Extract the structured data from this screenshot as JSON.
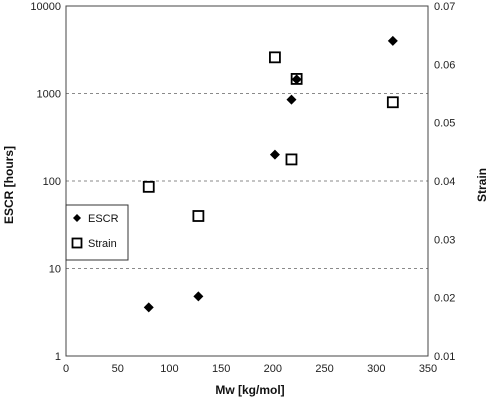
{
  "chart_data": {
    "type": "scatter",
    "xlabel": "Mw [kg/mol]",
    "ylabel_left": "ESCR [hours]",
    "ylabel_right": "Strain",
    "xlim": [
      0,
      350
    ],
    "ylim_left": [
      1,
      10000
    ],
    "ylim_right": [
      0.01,
      0.07
    ],
    "y_left_scale": "log",
    "x_ticks": [
      "0",
      "50",
      "100",
      "150",
      "200",
      "250",
      "300",
      "350"
    ],
    "y_left_ticks": [
      "1",
      "10",
      "100",
      "1000",
      "10000"
    ],
    "y_right_ticks": [
      "0.01",
      "0.02",
      "0.03",
      "0.04",
      "0.05",
      "0.06",
      "0.07"
    ],
    "grid": "horizontal dashed",
    "legend_position": "left",
    "series": [
      {
        "name": "ESCR",
        "axis": "left",
        "marker": "diamond",
        "color": "#000000",
        "points": [
          {
            "x": 80,
            "y": 3.6
          },
          {
            "x": 128,
            "y": 4.8
          },
          {
            "x": 202,
            "y": 200
          },
          {
            "x": 218,
            "y": 850
          },
          {
            "x": 223,
            "y": 1450
          },
          {
            "x": 316,
            "y": 4000
          }
        ]
      },
      {
        "name": "Strain",
        "axis": "right",
        "marker": "open-square",
        "color": "#000000",
        "points": [
          {
            "x": 80,
            "y": 0.039
          },
          {
            "x": 128,
            "y": 0.034
          },
          {
            "x": 202,
            "y": 0.0612
          },
          {
            "x": 218,
            "y": 0.0437
          },
          {
            "x": 223,
            "y": 0.0575
          },
          {
            "x": 316,
            "y": 0.0535
          }
        ]
      }
    ]
  }
}
